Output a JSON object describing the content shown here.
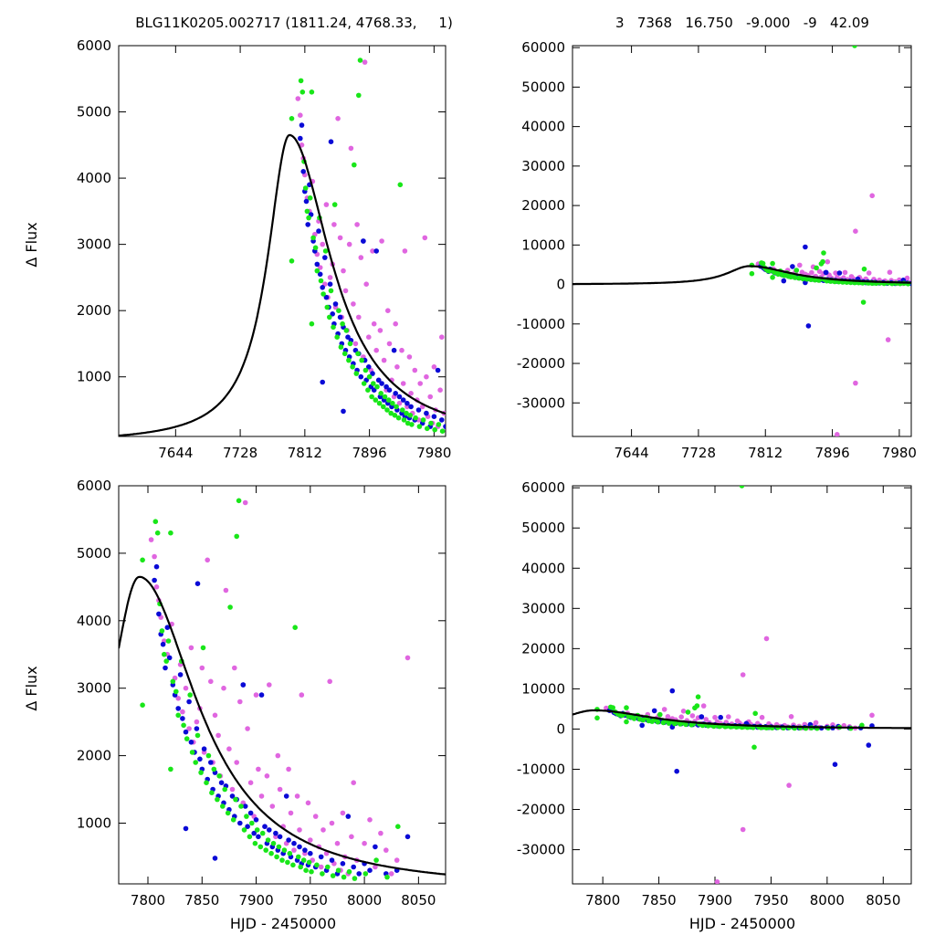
{
  "header": {
    "left": "BLG11K0205.002717 (1811.24, 4768.33,     1)",
    "right": "3   7368   16.750   -9.000   -9   42.09"
  },
  "colors": {
    "magenta": "#e066e0",
    "blue": "#0a0ad6",
    "green": "#19e619",
    "model": "#000000"
  },
  "chart_data": [
    {
      "id": "top-left",
      "type": "scatter",
      "xlabel": "",
      "ylabel": "Δ Flux",
      "xlim": [
        7570,
        7995
      ],
      "ylim": [
        100,
        6000
      ],
      "xticks": [
        7644,
        7728,
        7812,
        7896,
        7980
      ],
      "yticks": [
        1000,
        2000,
        3000,
        4000,
        5000,
        6000
      ]
    },
    {
      "id": "top-right",
      "type": "scatter",
      "xlabel": "",
      "ylabel": "",
      "xlim": [
        7570,
        7995
      ],
      "ylim": [
        -38500,
        60500
      ],
      "xticks": [
        7644,
        7728,
        7812,
        7896,
        7980
      ],
      "yticks": [
        -30000,
        -20000,
        -10000,
        0,
        10000,
        20000,
        30000,
        40000,
        50000,
        60000
      ]
    },
    {
      "id": "bottom-left",
      "type": "scatter",
      "xlabel": "HJD - 2450000",
      "ylabel": "Δ Flux",
      "xlim": [
        7773,
        8075
      ],
      "ylim": [
        100,
        6000
      ],
      "xticks": [
        7800,
        7850,
        7900,
        7950,
        8000,
        8050
      ],
      "yticks": [
        1000,
        2000,
        3000,
        4000,
        5000,
        6000
      ]
    },
    {
      "id": "bottom-right",
      "type": "scatter",
      "xlabel": "HJD - 2450000",
      "ylabel": "",
      "xlim": [
        7773,
        8075
      ],
      "ylim": [
        -38500,
        60500
      ],
      "xticks": [
        7800,
        7850,
        7900,
        7950,
        8000,
        8050
      ],
      "yticks": [
        -30000,
        -20000,
        -10000,
        0,
        10000,
        20000,
        30000,
        40000,
        50000,
        60000
      ]
    }
  ],
  "model": {
    "t0": 7792,
    "peak": 4650,
    "tE_rise": 35,
    "tE_fall": 66
  },
  "series": [
    {
      "name": "magenta",
      "color": "#e066e0",
      "points": [
        [
          7803,
          5200
        ],
        [
          7806,
          4950
        ],
        [
          7808,
          4500
        ],
        [
          7810,
          4300
        ],
        [
          7812,
          4050
        ],
        [
          7815,
          3700
        ],
        [
          7818,
          3500
        ],
        [
          7822,
          3950
        ],
        [
          7825,
          3150
        ],
        [
          7828,
          2850
        ],
        [
          7830,
          3350
        ],
        [
          7832,
          2650
        ],
        [
          7835,
          3000
        ],
        [
          7838,
          2400
        ],
        [
          7840,
          3600
        ],
        [
          7842,
          2200
        ],
        [
          7845,
          2500
        ],
        [
          7848,
          2700
        ],
        [
          7850,
          3300
        ],
        [
          7852,
          2050
        ],
        [
          7855,
          4900
        ],
        [
          7858,
          3100
        ],
        [
          7860,
          1900
        ],
        [
          7862,
          2600
        ],
        [
          7865,
          2300
        ],
        [
          7867,
          1700
        ],
        [
          7870,
          3000
        ],
        [
          7872,
          4450
        ],
        [
          7875,
          2100
        ],
        [
          7878,
          1500
        ],
        [
          7880,
          3300
        ],
        [
          7882,
          1900
        ],
        [
          7885,
          2800
        ],
        [
          7888,
          1300
        ],
        [
          7890,
          5750
        ],
        [
          7892,
          2400
        ],
        [
          7895,
          1600
        ],
        [
          7898,
          1100
        ],
        [
          7900,
          2900
        ],
        [
          7902,
          1800
        ],
        [
          7905,
          1400
        ],
        [
          7908,
          950
        ],
        [
          7910,
          1700
        ],
        [
          7912,
          3050
        ],
        [
          7915,
          1250
        ],
        [
          7918,
          800
        ],
        [
          7920,
          2000
        ],
        [
          7922,
          1500
        ],
        [
          7925,
          950
        ],
        [
          7928,
          700
        ],
        [
          7930,
          1800
        ],
        [
          7932,
          1150
        ],
        [
          7935,
          600
        ],
        [
          7938,
          1400
        ],
        [
          7940,
          900
        ],
        [
          7942,
          2900
        ],
        [
          7945,
          550
        ],
        [
          7948,
          1300
        ],
        [
          7950,
          750
        ],
        [
          7952,
          450
        ],
        [
          7955,
          1100
        ],
        [
          7958,
          650
        ],
        [
          7960,
          350
        ],
        [
          7962,
          900
        ],
        [
          7965,
          550
        ],
        [
          7968,
          3100
        ],
        [
          7970,
          1000
        ],
        [
          7972,
          400
        ],
        [
          7975,
          700
        ],
        [
          7978,
          300
        ],
        [
          7980,
          1150
        ],
        [
          7982,
          500
        ],
        [
          7985,
          250
        ],
        [
          7988,
          800
        ],
        [
          7990,
          1600
        ],
        [
          7993,
          450
        ],
        [
          8000,
          700
        ],
        [
          8005,
          1050
        ],
        [
          8010,
          350
        ],
        [
          8015,
          850
        ],
        [
          8020,
          600
        ],
        [
          8025,
          250
        ],
        [
          8030,
          450
        ],
        [
          8040,
          3450
        ],
        [
          7925,
          13500
        ],
        [
          7946,
          22500
        ],
        [
          7902,
          -38000
        ],
        [
          7925,
          -25000
        ],
        [
          7966,
          -14000
        ]
      ]
    },
    {
      "name": "blue",
      "color": "#0a0ad6",
      "points": [
        [
          7806,
          4600
        ],
        [
          7808,
          4800
        ],
        [
          7810,
          4100
        ],
        [
          7812,
          3800
        ],
        [
          7814,
          3650
        ],
        [
          7816,
          3300
        ],
        [
          7818,
          3900
        ],
        [
          7820,
          3450
        ],
        [
          7823,
          3050
        ],
        [
          7825,
          2900
        ],
        [
          7828,
          2700
        ],
        [
          7830,
          3200
        ],
        [
          7832,
          2550
        ],
        [
          7835,
          2350
        ],
        [
          7838,
          2800
        ],
        [
          7840,
          2200
        ],
        [
          7843,
          2050
        ],
        [
          7845,
          2400
        ],
        [
          7848,
          1950
        ],
        [
          7850,
          1800
        ],
        [
          7852,
          2100
        ],
        [
          7855,
          1650
        ],
        [
          7858,
          1900
        ],
        [
          7860,
          1500
        ],
        [
          7862,
          1750
        ],
        [
          7865,
          1400
        ],
        [
          7868,
          1600
        ],
        [
          7870,
          1300
        ],
        [
          7872,
          1550
        ],
        [
          7875,
          1200
        ],
        [
          7878,
          1400
        ],
        [
          7880,
          1100
        ],
        [
          7882,
          1350
        ],
        [
          7885,
          1000
        ],
        [
          7888,
          3050
        ],
        [
          7890,
          1250
        ],
        [
          7892,
          950
        ],
        [
          7895,
          1150
        ],
        [
          7898,
          850
        ],
        [
          7900,
          1050
        ],
        [
          7902,
          800
        ],
        [
          7905,
          2900
        ],
        [
          7908,
          950
        ],
        [
          7910,
          700
        ],
        [
          7912,
          900
        ],
        [
          7915,
          650
        ],
        [
          7918,
          850
        ],
        [
          7920,
          600
        ],
        [
          7922,
          800
        ],
        [
          7925,
          550
        ],
        [
          7928,
          1400
        ],
        [
          7930,
          750
        ],
        [
          7932,
          500
        ],
        [
          7935,
          700
        ],
        [
          7938,
          450
        ],
        [
          7940,
          650
        ],
        [
          7942,
          400
        ],
        [
          7945,
          600
        ],
        [
          7948,
          380
        ],
        [
          7950,
          550
        ],
        [
          7955,
          350
        ],
        [
          7960,
          500
        ],
        [
          7965,
          300
        ],
        [
          7970,
          450
        ],
        [
          7975,
          250
        ],
        [
          7980,
          400
        ],
        [
          7985,
          1100
        ],
        [
          7990,
          350
        ],
        [
          7995,
          250
        ],
        [
          8000,
          400
        ],
        [
          8005,
          300
        ],
        [
          8010,
          650
        ],
        [
          8020,
          250
        ],
        [
          8030,
          300
        ],
        [
          8040,
          800
        ],
        [
          7846,
          4550
        ],
        [
          7862,
          480
        ],
        [
          7835,
          920
        ],
        [
          7888,
          3050
        ],
        [
          7866,
          -10500
        ],
        [
          7862,
          9500
        ],
        [
          8007,
          -8800
        ],
        [
          8037,
          -4000
        ]
      ]
    },
    {
      "name": "green",
      "color": "#19e619",
      "points": [
        [
          7807,
          5470
        ],
        [
          7809,
          5300
        ],
        [
          7811,
          4250
        ],
        [
          7813,
          3850
        ],
        [
          7815,
          3500
        ],
        [
          7817,
          3400
        ],
        [
          7819,
          3700
        ],
        [
          7821,
          5300
        ],
        [
          7823,
          3100
        ],
        [
          7826,
          2950
        ],
        [
          7828,
          2600
        ],
        [
          7831,
          3400
        ],
        [
          7833,
          2450
        ],
        [
          7836,
          2250
        ],
        [
          7839,
          2900
        ],
        [
          7841,
          2050
        ],
        [
          7844,
          1900
        ],
        [
          7846,
          2300
        ],
        [
          7849,
          1750
        ],
        [
          7851,
          3600
        ],
        [
          7854,
          1600
        ],
        [
          7856,
          2000
        ],
        [
          7859,
          1450
        ],
        [
          7861,
          1800
        ],
        [
          7864,
          1350
        ],
        [
          7866,
          1700
        ],
        [
          7869,
          1250
        ],
        [
          7871,
          1500
        ],
        [
          7874,
          1150
        ],
        [
          7876,
          4200
        ],
        [
          7879,
          1050
        ],
        [
          7881,
          1350
        ],
        [
          7884,
          5780
        ],
        [
          7886,
          1250
        ],
        [
          7889,
          900
        ],
        [
          7891,
          1100
        ],
        [
          7894,
          800
        ],
        [
          7896,
          1000
        ],
        [
          7899,
          700
        ],
        [
          7901,
          900
        ],
        [
          7904,
          650
        ],
        [
          7906,
          850
        ],
        [
          7909,
          600
        ],
        [
          7911,
          750
        ],
        [
          7914,
          550
        ],
        [
          7916,
          700
        ],
        [
          7919,
          500
        ],
        [
          7921,
          650
        ],
        [
          7924,
          450
        ],
        [
          7926,
          600
        ],
        [
          7929,
          420
        ],
        [
          7931,
          550
        ],
        [
          7934,
          380
        ],
        [
          7936,
          3900
        ],
        [
          7939,
          500
        ],
        [
          7941,
          350
        ],
        [
          7944,
          450
        ],
        [
          7946,
          300
        ],
        [
          7949,
          420
        ],
        [
          7951,
          280
        ],
        [
          7956,
          380
        ],
        [
          7961,
          250
        ],
        [
          7966,
          350
        ],
        [
          7971,
          220
        ],
        [
          7976,
          300
        ],
        [
          7981,
          200
        ],
        [
          7986,
          280
        ],
        [
          7991,
          180
        ],
        [
          8001,
          250
        ],
        [
          8011,
          450
        ],
        [
          8021,
          200
        ],
        [
          8031,
          950
        ],
        [
          7795,
          2750
        ],
        [
          7795,
          4900
        ],
        [
          7821,
          1800
        ],
        [
          7882,
          5250
        ],
        [
          7885,
          8000
        ],
        [
          7935,
          -4500
        ],
        [
          7924,
          60500
        ]
      ]
    }
  ]
}
